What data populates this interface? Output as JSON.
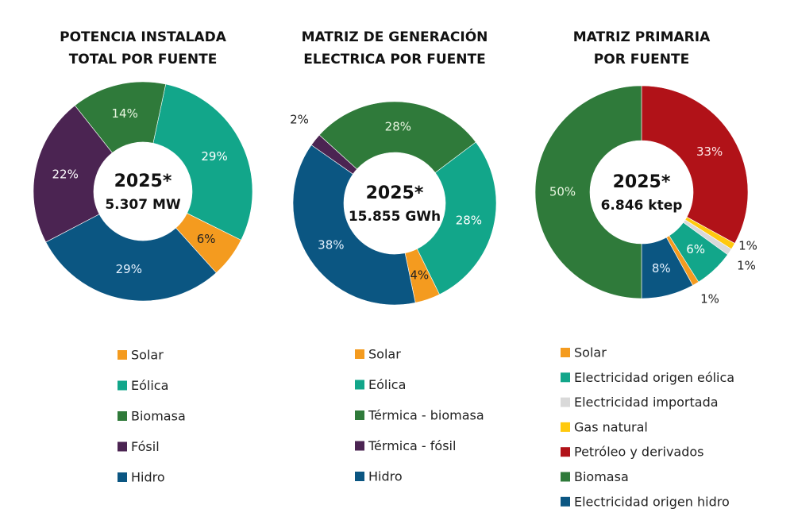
{
  "colors": {
    "Solar": "#F49B1F",
    "Eólica": "#12A68A",
    "Biomasa": "#2F7A3A",
    "Fósil": "#4B2452",
    "Hidro": "#0B5682",
    "Petróleo": "#B11218",
    "Importada": "#D9D9D9",
    "Gas": "#FFC90E"
  },
  "chart_data": [
    {
      "type": "doughnut",
      "title": [
        "POTENCIA INSTALADA",
        "TOTAL POR FUENTE"
      ],
      "center_label": [
        "2025*",
        "5.307 MW"
      ],
      "unit": "%",
      "slices": [
        {
          "name": "Eólica",
          "value": 29,
          "color": "#12A68A"
        },
        {
          "name": "Solar",
          "value": 6,
          "color": "#F49B1F"
        },
        {
          "name": "Hidro",
          "value": 29,
          "color": "#0B5682"
        },
        {
          "name": "Fósil",
          "value": 22,
          "color": "#4B2452"
        },
        {
          "name": "Biomasa",
          "value": 14,
          "color": "#2F7A3A"
        }
      ],
      "legend": [
        {
          "label": "Solar",
          "color": "#F49B1F"
        },
        {
          "label": "Eólica",
          "color": "#12A68A"
        },
        {
          "label": "Biomasa",
          "color": "#2F7A3A"
        },
        {
          "label": "Fósil",
          "color": "#4B2452"
        },
        {
          "label": "Hidro",
          "color": "#0B5682"
        }
      ]
    },
    {
      "type": "doughnut",
      "title": [
        "MATRIZ DE GENERACIÓN",
        "ELECTRICA POR FUENTE"
      ],
      "center_label": [
        "2025*",
        "15.855 GWh"
      ],
      "unit": "%",
      "slices": [
        {
          "name": "Eólica",
          "value": 28,
          "color": "#12A68A"
        },
        {
          "name": "Solar",
          "value": 4,
          "color": "#F49B1F"
        },
        {
          "name": "Hidro",
          "value": 38,
          "color": "#0B5682"
        },
        {
          "name": "Térmica - fósil",
          "value": 2,
          "color": "#4B2452"
        },
        {
          "name": "Térmica - biomasa",
          "value": 28,
          "color": "#2F7A3A"
        }
      ],
      "legend": [
        {
          "label": "Solar",
          "color": "#F49B1F"
        },
        {
          "label": "Eólica",
          "color": "#12A68A"
        },
        {
          "label": "Térmica - biomasa",
          "color": "#2F7A3A"
        },
        {
          "label": "Térmica - fósil",
          "color": "#4B2452"
        },
        {
          "label": "Hidro",
          "color": "#0B5682"
        }
      ]
    },
    {
      "type": "doughnut",
      "title": [
        "MATRIZ PRIMARIA",
        "POR FUENTE"
      ],
      "center_label": [
        "2025*",
        "6.846 ktep"
      ],
      "unit": "%",
      "slices": [
        {
          "name": "Petróleo y derivados",
          "value": 33,
          "color": "#B11218"
        },
        {
          "name": "Gas natural",
          "value": 1,
          "color": "#FFC90E"
        },
        {
          "name": "Electricidad importada",
          "value": 1,
          "color": "#D9D9D9"
        },
        {
          "name": "Electricidad origen eólica",
          "value": 6,
          "color": "#12A68A"
        },
        {
          "name": "Solar",
          "value": 1,
          "color": "#F49B1F"
        },
        {
          "name": "Electricidad origen hidro",
          "value": 8,
          "color": "#0B5682"
        },
        {
          "name": "Biomasa",
          "value": 50,
          "color": "#2F7A3A"
        }
      ],
      "legend": [
        {
          "label": "Solar",
          "color": "#F49B1F"
        },
        {
          "label": "Electricidad origen eólica",
          "color": "#12A68A"
        },
        {
          "label": "Electricidad importada",
          "color": "#D9D9D9"
        },
        {
          "label": "Gas natural",
          "color": "#FFC90E"
        },
        {
          "label": "Petróleo y derivados",
          "color": "#B11218"
        },
        {
          "label": "Biomasa",
          "color": "#2F7A3A"
        },
        {
          "label": "Electricidad origen hidro",
          "color": "#0B5682"
        }
      ]
    }
  ]
}
